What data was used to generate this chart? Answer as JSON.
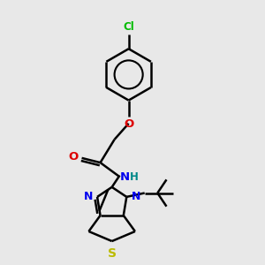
{
  "background_color": "#e8e8e8",
  "bond_color": "#000000",
  "bond_width": 1.8,
  "cl_color": "#00bb00",
  "o_color": "#dd0000",
  "n_color": "#0000ee",
  "s_color": "#bbbb00",
  "h_color": "#008888",
  "figsize": [
    3.0,
    3.0
  ],
  "dpi": 100,
  "xlim": [
    0,
    10
  ],
  "ylim": [
    0,
    10
  ]
}
